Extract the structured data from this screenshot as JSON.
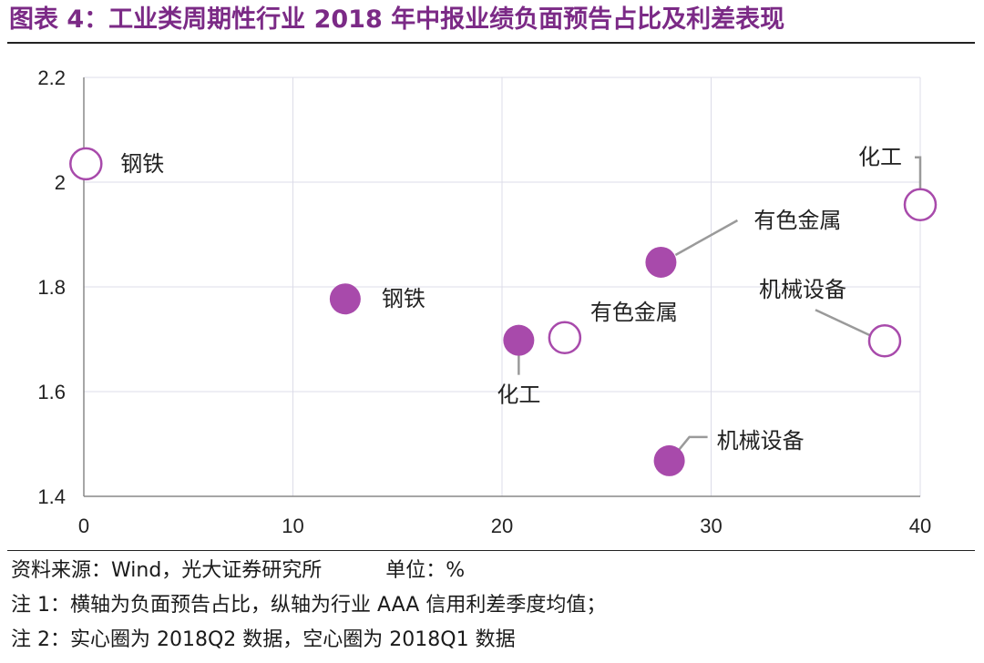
{
  "title": "图表 4：工业类周期性行业 2018 年中报业绩负面预告占比及利差表现",
  "notes": {
    "source": "资料来源：Wind，光大证券研究所",
    "unit": "单位：%",
    "note1": "注 1：横轴为负面预告占比，纵轴为行业 AAA 信用利差季度均值；",
    "note2": "注 2：实心圈为 2018Q2 数据，空心圈为 2018Q1 数据"
  },
  "colors": {
    "title": "#7b2a86",
    "marker": "#a84aab",
    "grid": "#dcdce8",
    "axis": "#888888",
    "leader": "#9a9a9a"
  },
  "chart_data": {
    "type": "scatter",
    "title": "",
    "xlabel": "",
    "ylabel": "",
    "xlim": [
      0,
      40
    ],
    "ylim": [
      1.4,
      2.2
    ],
    "xticks": [
      0,
      10,
      20,
      30,
      40
    ],
    "yticks": [
      1.4,
      1.6,
      1.8,
      2.0,
      2.2
    ],
    "ytick_labels": [
      "1.4",
      "1.6",
      "1.8",
      "2",
      "2.2"
    ],
    "grid": true,
    "legend": "none",
    "series": [
      {
        "style": "filled",
        "points": [
          {
            "label": "钢铁",
            "x": 12.5,
            "y": 1.777
          },
          {
            "label": "化工",
            "x": 20.8,
            "y": 1.698
          },
          {
            "label": "有色金属",
            "x": 27.6,
            "y": 1.847
          },
          {
            "label": "机械设备",
            "x": 28.0,
            "y": 1.468
          }
        ]
      },
      {
        "style": "hollow",
        "points": [
          {
            "label": "钢铁",
            "x": 0.1,
            "y": 2.035
          },
          {
            "label": "化工",
            "x": 40.0,
            "y": 1.957
          },
          {
            "label": "有色金属",
            "x": 23.0,
            "y": 1.703
          },
          {
            "label": "机械设备",
            "x": 38.3,
            "y": 1.697
          }
        ]
      }
    ]
  }
}
